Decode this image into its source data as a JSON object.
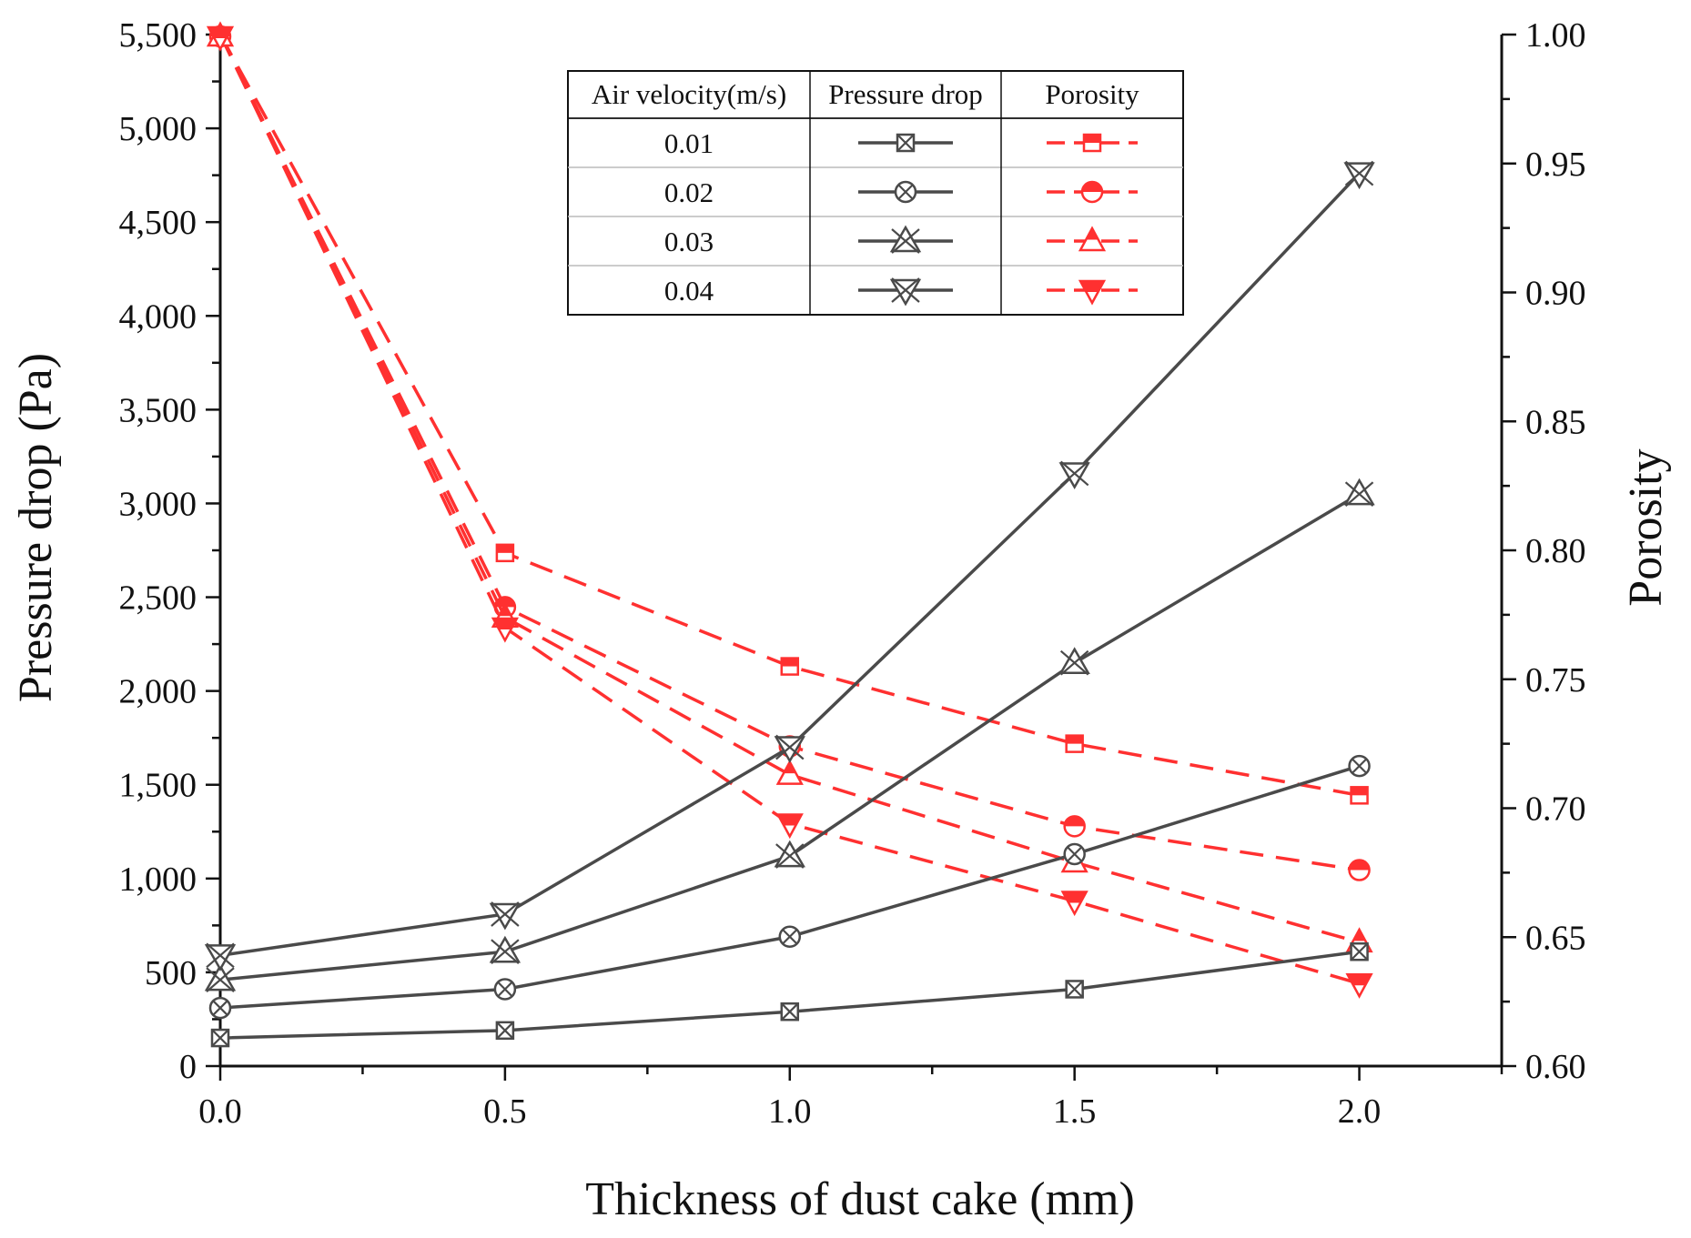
{
  "chart_data": {
    "type": "line",
    "xlabel": "Thickness of dust cake (mm)",
    "ylabel_left": "Pressure drop (Pa)",
    "ylabel_right": "Porosity",
    "x": [
      0.0,
      0.5,
      1.0,
      1.5,
      2.0
    ],
    "xlim": [
      0,
      2.25
    ],
    "ylim_left": [
      0,
      5500
    ],
    "ylim_right": [
      0.6,
      1.0
    ],
    "x_ticks": [
      "0.0",
      "0.5",
      "1.0",
      "1.5",
      "2.0"
    ],
    "y_ticks_left": [
      "0",
      "500",
      "1,000",
      "1,500",
      "2,000",
      "2,500",
      "3,000",
      "3,500",
      "4,000",
      "4,500",
      "5,000",
      "5,500"
    ],
    "y_ticks_right": [
      "0.60",
      "0.65",
      "0.70",
      "0.75",
      "0.80",
      "0.85",
      "0.90",
      "0.95",
      "1.00"
    ],
    "pressure_series": [
      {
        "name": "0.01",
        "marker": "square-x",
        "values": [
          150,
          190,
          290,
          410,
          610
        ]
      },
      {
        "name": "0.02",
        "marker": "circle-x",
        "values": [
          310,
          410,
          690,
          1130,
          1600
        ]
      },
      {
        "name": "0.03",
        "marker": "triangle-x",
        "values": [
          460,
          610,
          1120,
          2150,
          3050
        ]
      },
      {
        "name": "0.04",
        "marker": "invtriangle-x",
        "values": [
          590,
          810,
          1700,
          3160,
          4760
        ]
      }
    ],
    "porosity_series": [
      {
        "name": "0.01",
        "marker": "square-half",
        "values": [
          1.0,
          0.799,
          0.755,
          0.725,
          0.705
        ]
      },
      {
        "name": "0.02",
        "marker": "circle-half",
        "values": [
          1.0,
          0.778,
          0.724,
          0.693,
          0.676
        ]
      },
      {
        "name": "0.03",
        "marker": "triangle-half",
        "values": [
          1.0,
          0.774,
          0.713,
          0.679,
          0.648
        ]
      },
      {
        "name": "0.04",
        "marker": "invtriangle-half",
        "values": [
          1.0,
          0.77,
          0.694,
          0.664,
          0.632
        ]
      }
    ],
    "legend": {
      "headers": [
        "Air velocity(m/s)",
        "Pressure drop",
        "Porosity"
      ],
      "rows": [
        "0.01",
        "0.02",
        "0.03",
        "0.04"
      ],
      "placement": "top-center"
    },
    "colors": {
      "pressure": "#4a4a4a",
      "porosity": "#ff3030"
    }
  }
}
